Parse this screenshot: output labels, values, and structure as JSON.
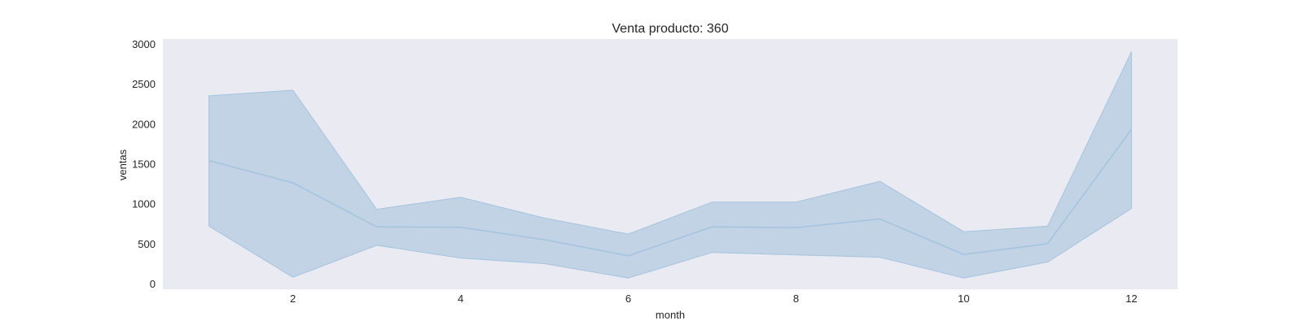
{
  "chart_data": {
    "type": "line",
    "title": "Venta producto: 360",
    "xlabel": "month",
    "ylabel": "ventas",
    "x": [
      1,
      2,
      3,
      4,
      5,
      6,
      7,
      8,
      9,
      10,
      11,
      12
    ],
    "series": [
      {
        "values": [
          1540,
          1260,
          710,
          705,
          550,
          350,
          710,
          700,
          810,
          365,
          500,
          1930
        ],
        "band_lower": [
          720,
          80,
          480,
          320,
          250,
          70,
          390,
          360,
          330,
          70,
          270,
          940
        ],
        "band_upper": [
          2350,
          2420,
          930,
          1080,
          820,
          620,
          1020,
          1020,
          1280,
          650,
          720,
          2900
        ]
      }
    ],
    "x_ticks": [
      2,
      4,
      6,
      8,
      10,
      12
    ],
    "y_ticks": [
      0,
      500,
      1000,
      1500,
      2000,
      2500,
      3000
    ],
    "xlim": [
      0.45,
      12.55
    ],
    "ylim": [
      -70,
      3060
    ],
    "grid": false,
    "colors": {
      "plot_background": "#eaeaf2",
      "line": "#a6c4de",
      "band": "#c1d3e5"
    }
  }
}
